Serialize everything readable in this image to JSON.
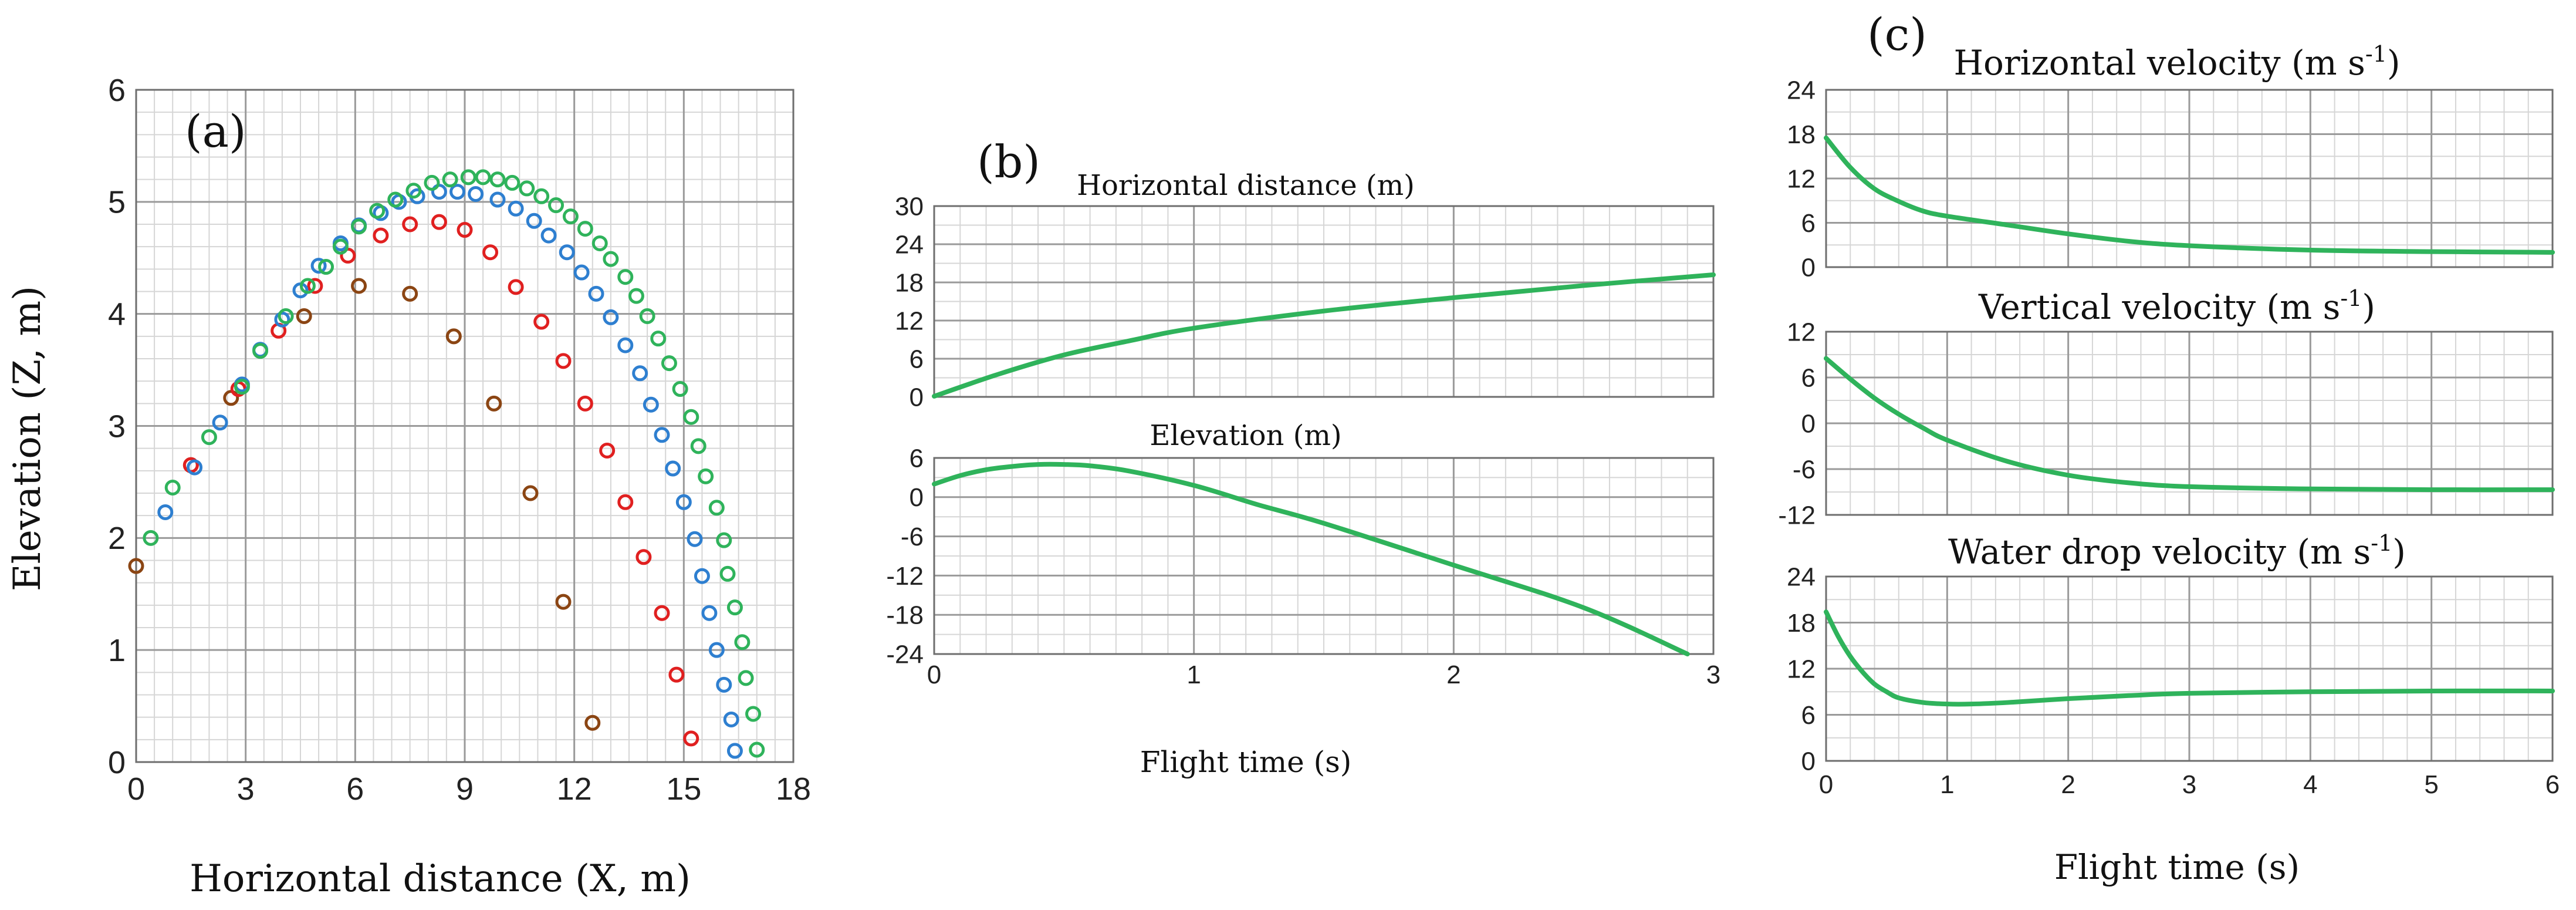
{
  "figure": {
    "panel_labels": [
      "(a)",
      "(b)",
      "(c)"
    ]
  },
  "chart_data": [
    {
      "id": "a",
      "type": "scatter",
      "title": "",
      "xlabel": "Horizontal distance (X, m)",
      "ylabel": "Elevation (Z, m)",
      "xlim": [
        0,
        18
      ],
      "ylim": [
        0,
        6
      ],
      "xticks": [
        0,
        3,
        6,
        9,
        12,
        15,
        18
      ],
      "yticks": [
        0,
        1,
        2,
        3,
        4,
        5,
        6
      ],
      "grid": true,
      "series": [
        {
          "color": "#8B4513",
          "points": [
            [
              0.0,
              1.75
            ],
            [
              1.5,
              2.65
            ],
            [
              2.6,
              3.25
            ],
            [
              4.6,
              3.98
            ],
            [
              6.1,
              4.25
            ],
            [
              7.5,
              4.18
            ],
            [
              8.7,
              3.8
            ],
            [
              9.8,
              3.2
            ],
            [
              10.8,
              2.4
            ],
            [
              11.7,
              1.43
            ],
            [
              12.5,
              0.35
            ]
          ]
        },
        {
          "color": "#e02020",
          "points": [
            [
              1.5,
              2.65
            ],
            [
              2.8,
              3.33
            ],
            [
              3.9,
              3.85
            ],
            [
              4.9,
              4.25
            ],
            [
              5.8,
              4.52
            ],
            [
              6.7,
              4.7
            ],
            [
              7.5,
              4.8
            ],
            [
              8.3,
              4.82
            ],
            [
              9.0,
              4.75
            ],
            [
              9.7,
              4.55
            ],
            [
              10.4,
              4.24
            ],
            [
              11.1,
              3.93
            ],
            [
              11.7,
              3.58
            ],
            [
              12.3,
              3.2
            ],
            [
              12.9,
              2.78
            ],
            [
              13.4,
              2.32
            ],
            [
              13.9,
              1.83
            ],
            [
              14.4,
              1.33
            ],
            [
              14.8,
              0.78
            ],
            [
              15.2,
              0.21
            ]
          ]
        },
        {
          "color": "#2e7fd0",
          "points": [
            [
              0.8,
              2.23
            ],
            [
              1.6,
              2.63
            ],
            [
              2.3,
              3.03
            ],
            [
              2.9,
              3.37
            ],
            [
              3.4,
              3.68
            ],
            [
              4.0,
              3.95
            ],
            [
              4.5,
              4.21
            ],
            [
              5.0,
              4.43
            ],
            [
              5.6,
              4.63
            ],
            [
              6.1,
              4.79
            ],
            [
              6.7,
              4.9
            ],
            [
              7.2,
              5.0
            ],
            [
              7.7,
              5.05
            ],
            [
              8.3,
              5.09
            ],
            [
              8.8,
              5.09
            ],
            [
              9.3,
              5.07
            ],
            [
              9.9,
              5.02
            ],
            [
              10.4,
              4.94
            ],
            [
              10.9,
              4.83
            ],
            [
              11.3,
              4.7
            ],
            [
              11.8,
              4.55
            ],
            [
              12.2,
              4.37
            ],
            [
              12.6,
              4.18
            ],
            [
              13.0,
              3.97
            ],
            [
              13.4,
              3.72
            ],
            [
              13.8,
              3.47
            ],
            [
              14.1,
              3.19
            ],
            [
              14.4,
              2.92
            ],
            [
              14.7,
              2.62
            ],
            [
              15.0,
              2.32
            ],
            [
              15.3,
              1.99
            ],
            [
              15.5,
              1.66
            ],
            [
              15.7,
              1.33
            ],
            [
              15.9,
              1.0
            ],
            [
              16.1,
              0.69
            ],
            [
              16.3,
              0.38
            ],
            [
              16.4,
              0.1
            ]
          ]
        },
        {
          "color": "#2fb35b",
          "points": [
            [
              0.4,
              2.0
            ],
            [
              1.0,
              2.45
            ],
            [
              2.0,
              2.9
            ],
            [
              2.9,
              3.35
            ],
            [
              3.4,
              3.67
            ],
            [
              4.1,
              3.98
            ],
            [
              4.7,
              4.25
            ],
            [
              5.2,
              4.42
            ],
            [
              5.6,
              4.6
            ],
            [
              6.1,
              4.78
            ],
            [
              6.6,
              4.92
            ],
            [
              7.1,
              5.02
            ],
            [
              7.6,
              5.1
            ],
            [
              8.1,
              5.17
            ],
            [
              8.6,
              5.2
            ],
            [
              9.1,
              5.22
            ],
            [
              9.5,
              5.22
            ],
            [
              9.9,
              5.2
            ],
            [
              10.3,
              5.17
            ],
            [
              10.7,
              5.12
            ],
            [
              11.1,
              5.05
            ],
            [
              11.5,
              4.97
            ],
            [
              11.9,
              4.87
            ],
            [
              12.3,
              4.76
            ],
            [
              12.7,
              4.63
            ],
            [
              13.0,
              4.49
            ],
            [
              13.4,
              4.33
            ],
            [
              13.7,
              4.16
            ],
            [
              14.0,
              3.98
            ],
            [
              14.3,
              3.78
            ],
            [
              14.6,
              3.56
            ],
            [
              14.9,
              3.33
            ],
            [
              15.2,
              3.08
            ],
            [
              15.4,
              2.82
            ],
            [
              15.6,
              2.55
            ],
            [
              15.9,
              2.27
            ],
            [
              16.1,
              1.98
            ],
            [
              16.2,
              1.68
            ],
            [
              16.4,
              1.38
            ],
            [
              16.6,
              1.07
            ],
            [
              16.7,
              0.75
            ],
            [
              16.9,
              0.43
            ],
            [
              17.0,
              0.11
            ]
          ]
        }
      ]
    },
    {
      "id": "b1",
      "type": "line",
      "title": "Horizontal distance (m)",
      "xlim": [
        0,
        3
      ],
      "ylim": [
        0,
        30
      ],
      "yticks": [
        0,
        6,
        12,
        18,
        24,
        30
      ],
      "grid": true,
      "series": [
        {
          "color": "#2fb35b",
          "x": [
            0,
            0.25,
            0.5,
            0.75,
            1.0,
            1.5,
            2.0,
            2.5,
            3.0
          ],
          "y": [
            0.1,
            3.6,
            6.6,
            8.8,
            10.8,
            13.5,
            15.6,
            17.5,
            19.2
          ]
        }
      ]
    },
    {
      "id": "b2",
      "type": "line",
      "title": "Elevation (m)",
      "xlabel": "Flight time (s)",
      "xlim": [
        0,
        3
      ],
      "ylim": [
        -24,
        6
      ],
      "xticks": [
        0,
        1,
        2,
        3
      ],
      "yticks": [
        6,
        0,
        -6,
        -12,
        -18,
        -24
      ],
      "grid": true,
      "series": [
        {
          "color": "#2fb35b",
          "x": [
            0,
            0.1,
            0.2,
            0.3,
            0.4,
            0.5,
            0.6,
            0.75,
            1.0,
            1.25,
            1.5,
            2.0,
            2.5,
            2.9
          ],
          "y": [
            2.0,
            3.3,
            4.2,
            4.7,
            5.0,
            5.0,
            4.8,
            4.0,
            1.8,
            -1.2,
            -4.0,
            -10.4,
            -16.9,
            -24.0
          ]
        }
      ]
    },
    {
      "id": "c1",
      "type": "line",
      "title": "Horizontal velocity (m s-1)",
      "xlim": [
        0,
        6
      ],
      "ylim": [
        0,
        24
      ],
      "yticks": [
        0,
        6,
        12,
        18,
        24
      ],
      "grid": true,
      "series": [
        {
          "color": "#2fb35b",
          "x": [
            0,
            0.2,
            0.4,
            0.6,
            0.8,
            1.0,
            1.5,
            2.0,
            2.5,
            3.0,
            4.0,
            5.0,
            6.0
          ],
          "y": [
            17.5,
            13.5,
            10.6,
            8.9,
            7.6,
            6.9,
            5.7,
            4.5,
            3.5,
            2.9,
            2.3,
            2.1,
            2.0
          ]
        }
      ]
    },
    {
      "id": "c2",
      "type": "line",
      "title": "Vertical velocity (m s-1)",
      "xlim": [
        0,
        6
      ],
      "ylim": [
        -12,
        12
      ],
      "yticks": [
        12,
        6,
        0,
        -6,
        -12
      ],
      "grid": true,
      "series": [
        {
          "color": "#2fb35b",
          "x": [
            0,
            0.2,
            0.4,
            0.6,
            0.8,
            1.0,
            1.5,
            2.0,
            2.5,
            3.0,
            4.0,
            5.0,
            6.0
          ],
          "y": [
            8.5,
            5.8,
            3.3,
            1.2,
            -0.6,
            -2.2,
            -5.0,
            -6.8,
            -7.8,
            -8.3,
            -8.6,
            -8.7,
            -8.7
          ]
        }
      ]
    },
    {
      "id": "c3",
      "type": "line",
      "title": "Water drop velocity (m s-1)",
      "xlabel": "Flight time (s)",
      "xlim": [
        0,
        6
      ],
      "ylim": [
        0,
        24
      ],
      "xticks": [
        0,
        1,
        2,
        3,
        4,
        5,
        6
      ],
      "yticks": [
        0,
        6,
        12,
        18,
        24
      ],
      "grid": true,
      "series": [
        {
          "color": "#2fb35b",
          "x": [
            0,
            0.1,
            0.2,
            0.3,
            0.4,
            0.5,
            0.6,
            0.8,
            1.0,
            1.2,
            1.5,
            2.0,
            2.5,
            3.0,
            4.0,
            5.0,
            6.0
          ],
          "y": [
            19.4,
            16.2,
            13.6,
            11.6,
            10.0,
            9.0,
            8.2,
            7.6,
            7.4,
            7.4,
            7.6,
            8.1,
            8.5,
            8.8,
            9.0,
            9.1,
            9.1
          ]
        }
      ]
    }
  ]
}
